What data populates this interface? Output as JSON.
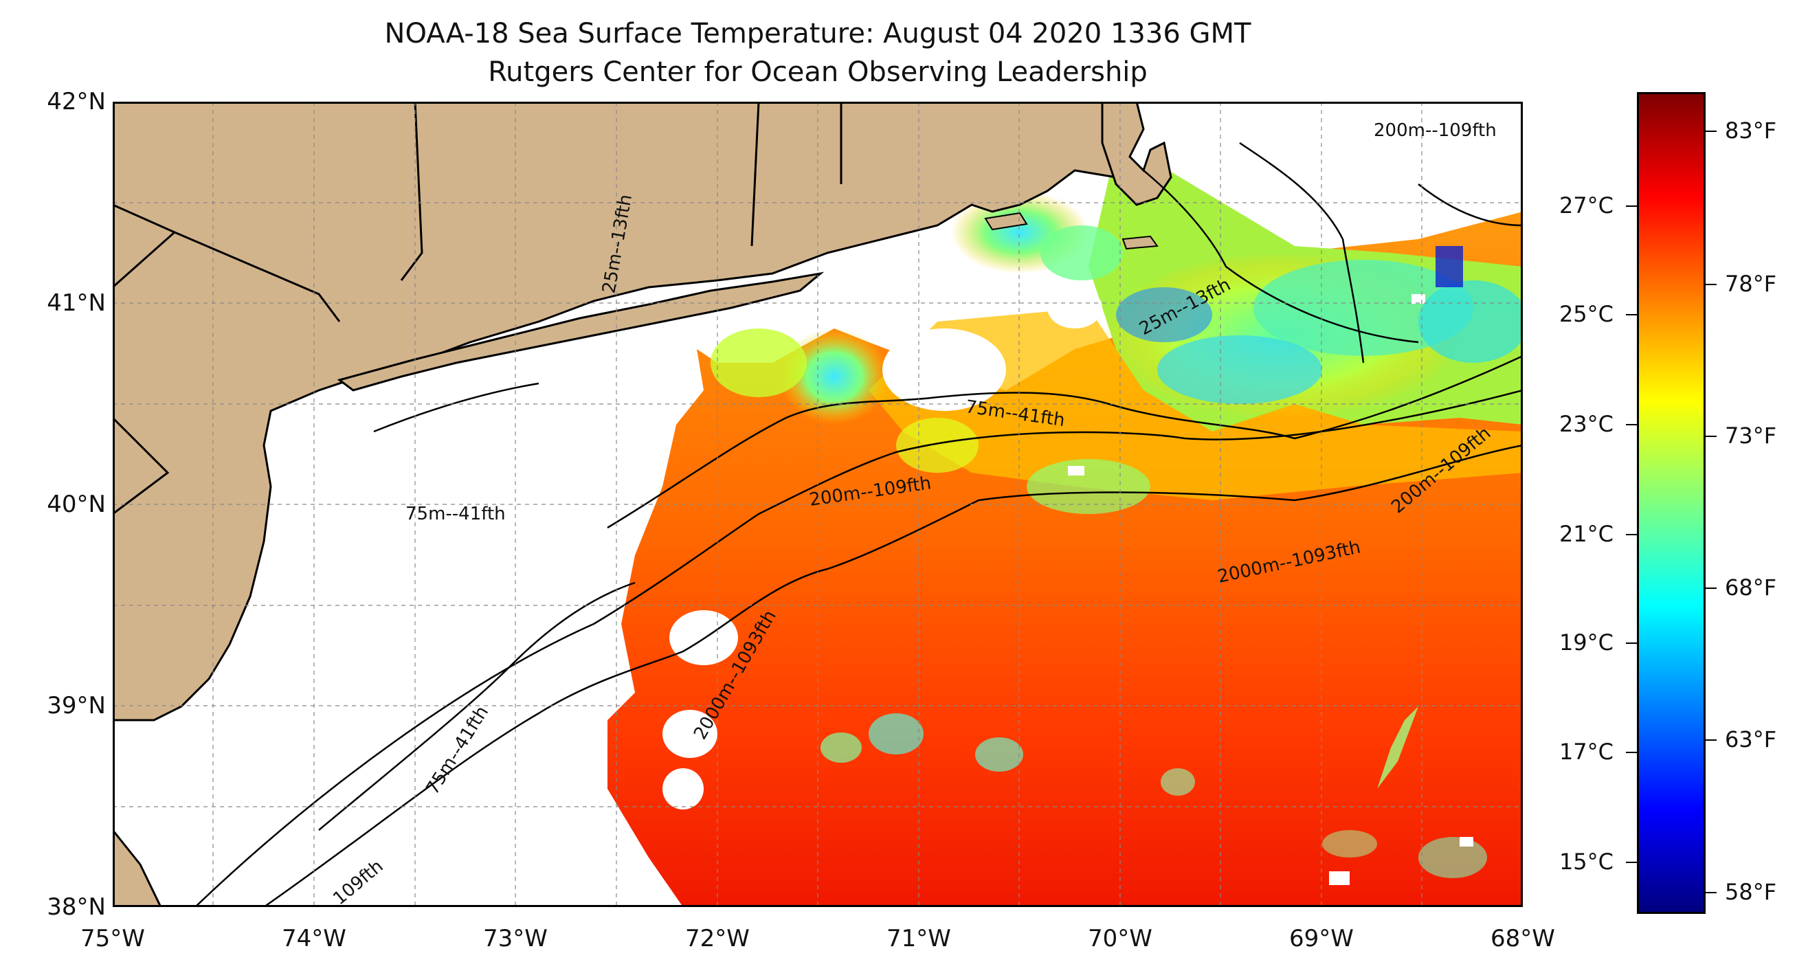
{
  "title": {
    "line1": "NOAA-18 Sea Surface Temperature: August 04 2020 1336 GMT",
    "line2": "Rutgers Center for Ocean Observing Leadership"
  },
  "map": {
    "extent": {
      "lon_min": -75,
      "lon_max": -68,
      "lat_min": 38,
      "lat_max": 42
    },
    "lat_ticks": [
      "42°N",
      "41°N",
      "40°N",
      "39°N",
      "38°N"
    ],
    "lon_ticks": [
      "75°W",
      "74°W",
      "73°W",
      "72°W",
      "71°W",
      "70°W",
      "69°W",
      "68°W"
    ],
    "grid": true,
    "land_color": "#d2b48c",
    "cloud_color": "#ffffff",
    "contour_labels": [
      "200m--109fth",
      "25m--13fth",
      "25m--13fth",
      "75m--41fth",
      "75m--41fth",
      "200m--109fth",
      "200m--109fth",
      "2000m--1093fth",
      "2000m--1093fth",
      "75m--41fth",
      "109fth"
    ]
  },
  "colorbar": {
    "colormap": "jet",
    "celsius_labels": [
      "27°C",
      "25°C",
      "23°C",
      "21°C",
      "19°C",
      "17°C",
      "15°C"
    ],
    "fahrenheit_labels": [
      "83°F",
      "78°F",
      "73°F",
      "68°F",
      "63°F",
      "58°F"
    ],
    "colors": [
      "#00007f",
      "#0000ff",
      "#007fff",
      "#00ffff",
      "#7fff7f",
      "#ffff00",
      "#ff7f00",
      "#ff0000",
      "#7f0000"
    ]
  }
}
